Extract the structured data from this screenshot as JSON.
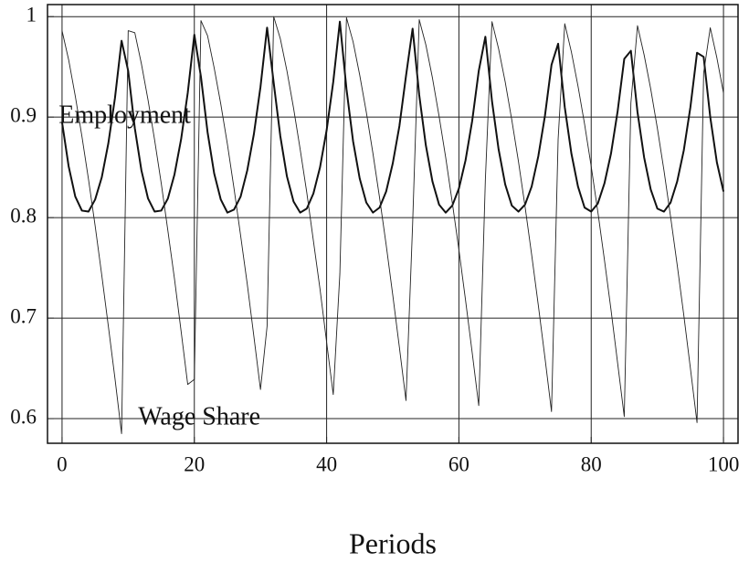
{
  "chart_data": {
    "type": "line",
    "xlabel": "Periods",
    "x": [
      0,
      1,
      2,
      3,
      4,
      5,
      6,
      7,
      8,
      9,
      10,
      11,
      12,
      13,
      14,
      15,
      16,
      17,
      18,
      19,
      20,
      21,
      22,
      23,
      24,
      25,
      26,
      27,
      28,
      29,
      30,
      31,
      32,
      33,
      34,
      35,
      36,
      37,
      38,
      39,
      40,
      41,
      42,
      43,
      44,
      45,
      46,
      47,
      48,
      49,
      50,
      51,
      52,
      53,
      54,
      55,
      56,
      57,
      58,
      59,
      60,
      61,
      62,
      63,
      64,
      65,
      66,
      67,
      68,
      69,
      70,
      71,
      72,
      73,
      74,
      75,
      76,
      77,
      78,
      79,
      80,
      81,
      82,
      83,
      84,
      85,
      86,
      87,
      88,
      89,
      90,
      91,
      92,
      93,
      94,
      95,
      96,
      97,
      98,
      99,
      100
    ],
    "series": [
      {
        "name": "Employment",
        "color": "#111111",
        "values": [
          0.895,
          0.851,
          0.821,
          0.807,
          0.806,
          0.818,
          0.84,
          0.874,
          0.919,
          0.976,
          0.946,
          0.889,
          0.847,
          0.819,
          0.806,
          0.807,
          0.819,
          0.843,
          0.878,
          0.924,
          0.982,
          0.94,
          0.885,
          0.844,
          0.818,
          0.805,
          0.808,
          0.821,
          0.847,
          0.883,
          0.93,
          0.989,
          0.934,
          0.881,
          0.841,
          0.816,
          0.805,
          0.809,
          0.824,
          0.85,
          0.887,
          0.935,
          0.995,
          0.928,
          0.876,
          0.839,
          0.815,
          0.805,
          0.81,
          0.826,
          0.854,
          0.891,
          0.941,
          0.988,
          0.922,
          0.872,
          0.836,
          0.813,
          0.805,
          0.812,
          0.829,
          0.857,
          0.896,
          0.946,
          0.98,
          0.916,
          0.868,
          0.833,
          0.812,
          0.806,
          0.813,
          0.831,
          0.861,
          0.901,
          0.952,
          0.973,
          0.91,
          0.864,
          0.831,
          0.81,
          0.806,
          0.814,
          0.834,
          0.864,
          0.906,
          0.958,
          0.966,
          0.905,
          0.86,
          0.828,
          0.809,
          0.806,
          0.815,
          0.836,
          0.867,
          0.91,
          0.964,
          0.96,
          0.9,
          0.855,
          0.826
        ]
      },
      {
        "name": "Wage Share",
        "color": "#222222",
        "values": [
          0.986,
          0.957,
          0.921,
          0.881,
          0.838,
          0.792,
          0.743,
          0.692,
          0.64,
          0.585,
          0.986,
          0.984,
          0.953,
          0.917,
          0.877,
          0.834,
          0.787,
          0.739,
          0.687,
          0.634,
          0.639,
          0.996,
          0.981,
          0.949,
          0.913,
          0.873,
          0.829,
          0.782,
          0.734,
          0.682,
          0.629,
          0.692,
          1.0,
          0.978,
          0.946,
          0.909,
          0.868,
          0.825,
          0.777,
          0.729,
          0.676,
          0.624,
          0.744,
          0.999,
          0.975,
          0.942,
          0.905,
          0.864,
          0.82,
          0.773,
          0.723,
          0.671,
          0.618,
          0.793,
          0.997,
          0.972,
          0.939,
          0.901,
          0.86,
          0.815,
          0.768,
          0.718,
          0.666,
          0.613,
          0.838,
          0.995,
          0.968,
          0.935,
          0.897,
          0.856,
          0.811,
          0.763,
          0.713,
          0.661,
          0.607,
          0.878,
          0.993,
          0.965,
          0.931,
          0.893,
          0.851,
          0.806,
          0.758,
          0.708,
          0.655,
          0.602,
          0.914,
          0.991,
          0.962,
          0.928,
          0.889,
          0.847,
          0.801,
          0.753,
          0.703,
          0.65,
          0.596,
          0.944,
          0.989,
          0.959,
          0.924
        ]
      }
    ],
    "xlim": [
      -2.2,
      102.2
    ],
    "ylim": [
      0.5755,
      1.012
    ],
    "xticks": [
      0,
      20,
      40,
      60,
      80,
      100
    ],
    "yticks": [
      0.6,
      0.7,
      0.8,
      0.9,
      1
    ],
    "grid": true
  }
}
